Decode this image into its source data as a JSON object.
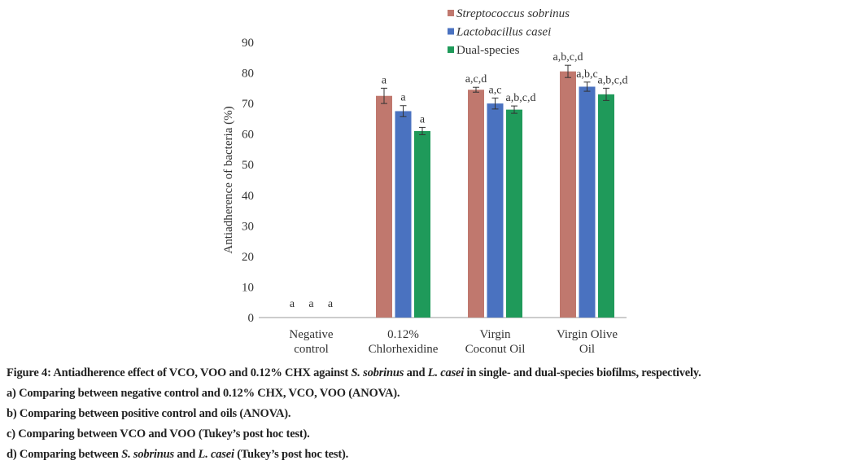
{
  "chart_data": {
    "type": "bar",
    "ylabel": "Antiadherence of bacteria (%)",
    "xlabel": "",
    "ylim": [
      0,
      90
    ],
    "yticks": [
      0,
      10,
      20,
      30,
      40,
      50,
      60,
      70,
      80,
      90
    ],
    "categories": [
      [
        "Negative",
        "control"
      ],
      [
        "0.12%",
        "Chlorhexidine"
      ],
      [
        "Virgin",
        "Coconut Oil"
      ],
      [
        "Virgin Olive",
        "Oil"
      ]
    ],
    "series": [
      {
        "name": "Streptococcus sobrinus",
        "color": "#c0786e",
        "values": [
          0,
          72.5,
          74.5,
          80.5
        ],
        "errors": [
          0,
          2.5,
          0.8,
          2.0
        ],
        "labels": [
          "a",
          "a",
          "a,c,d",
          "a,b,c,d"
        ]
      },
      {
        "name": "Lactobacillus casei",
        "color": "#4a72c0",
        "values": [
          0,
          67.5,
          70,
          75.5
        ],
        "errors": [
          0,
          1.8,
          1.8,
          1.5
        ],
        "labels": [
          "a",
          "a",
          "a,c",
          "a,b,c"
        ]
      },
      {
        "name": "Dual-species",
        "color": "#1f9a5a",
        "values": [
          0,
          61,
          68,
          73
        ],
        "errors": [
          0,
          1.2,
          1.2,
          2.0
        ],
        "labels": [
          "a",
          "a",
          "a,b,c,d",
          "a,b,c,d"
        ]
      }
    ],
    "legend": "top-right",
    "grid": false
  },
  "caption": {
    "title_pre": "Figure 4: Antiadherence effect of VCO, VOO and 0.12% CHX against ",
    "title_sp1": "S. sobrinus",
    "title_mid": " and ",
    "title_sp2": "L. casei",
    "title_post": " in single- and dual-species biofilms, respectively.",
    "a": "a) Comparing between negative control and 0.12% CHX, VCO, VOO (ANOVA).",
    "b": "b) Comparing between positive control and oils (ANOVA).",
    "c": "c) Comparing between VCO and VOO (Tukey’s post hoc test).",
    "d_pre": "d) Comparing between ",
    "d_sp1": "S. sobrinus",
    "d_mid": " and ",
    "d_sp2": "L. casei",
    "d_post": " (Tukey’s post hoc test)."
  }
}
